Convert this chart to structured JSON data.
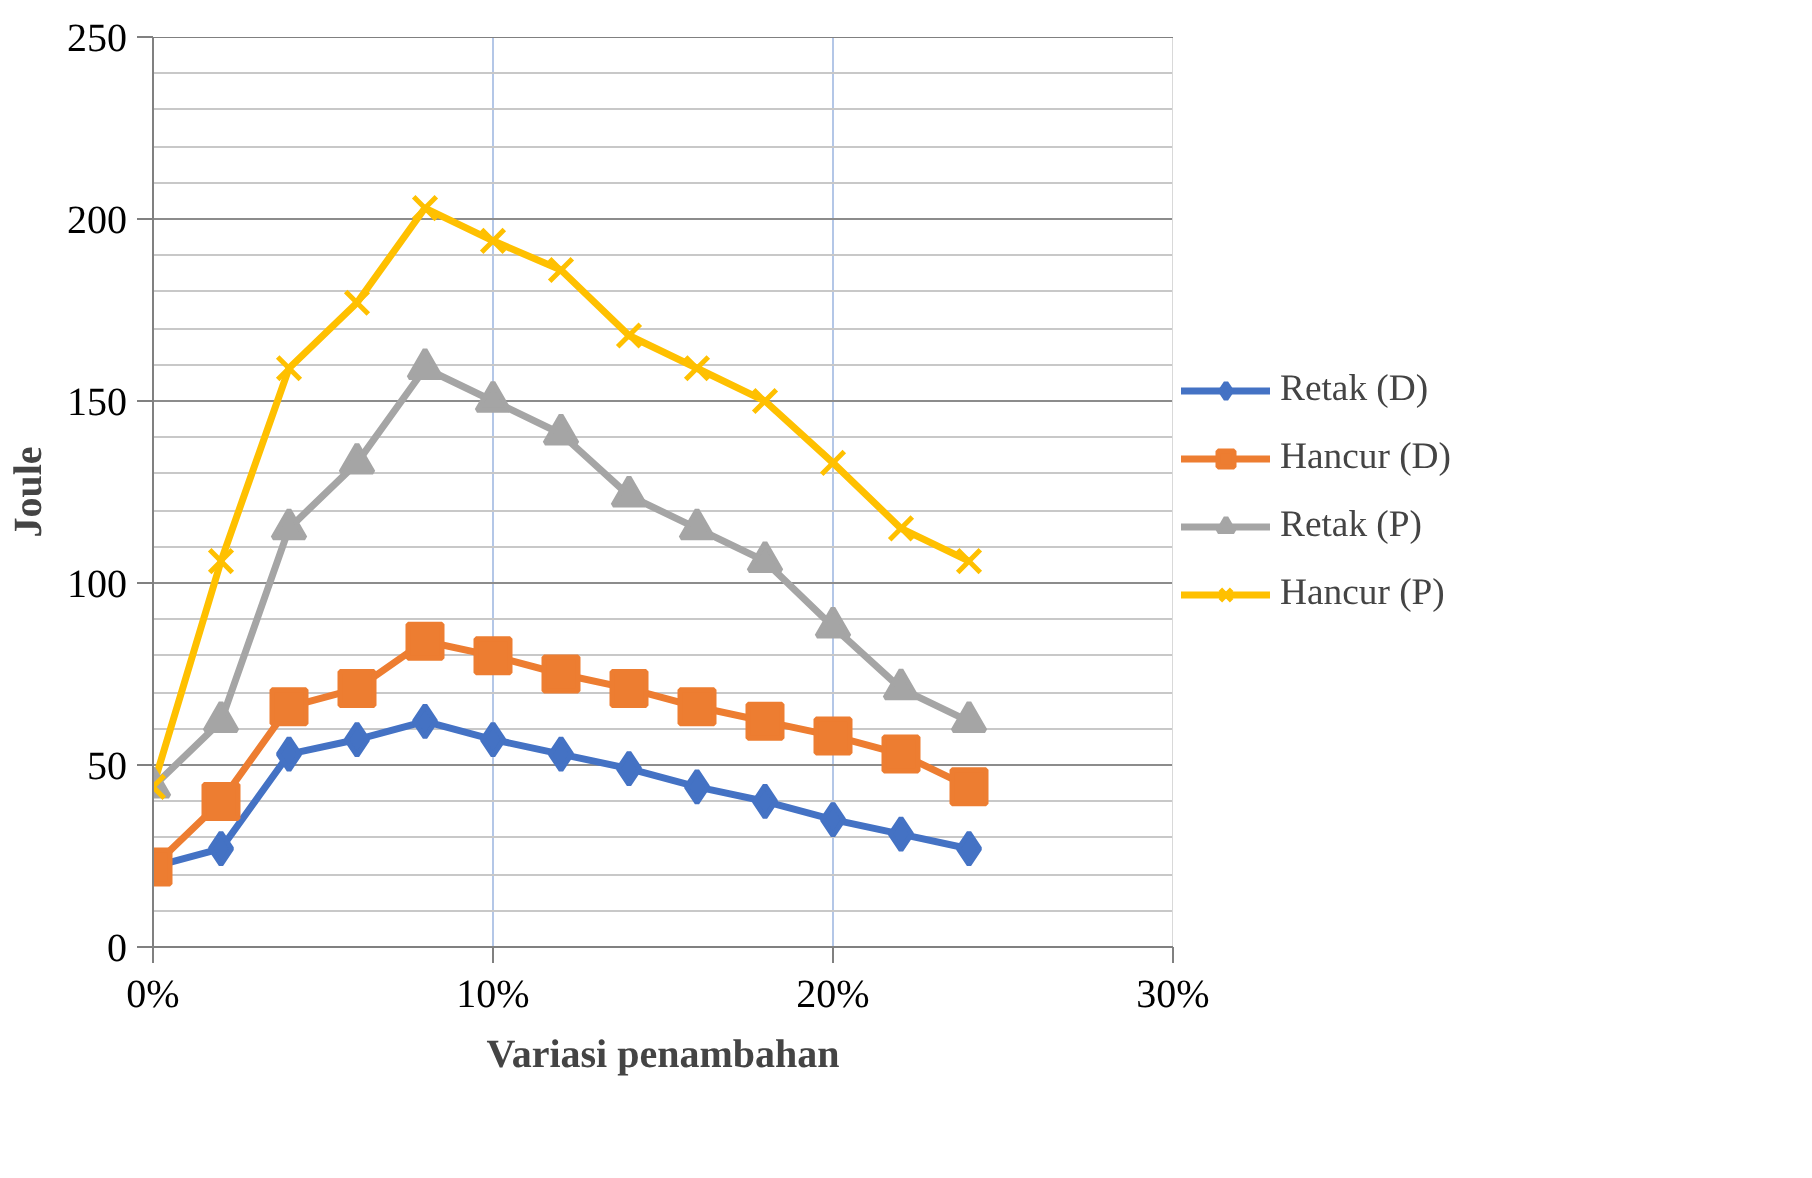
{
  "chart_data": {
    "type": "line",
    "xlabel": "Variasi penambahan",
    "ylabel": "Joule",
    "x": [
      0,
      0.02,
      0.04,
      0.06,
      0.08,
      0.1,
      0.12,
      0.14,
      0.16,
      0.18,
      0.2,
      0.22,
      0.24
    ],
    "xlim": [
      0,
      0.3
    ],
    "xticks": [
      {
        "value": 0,
        "label": "0%"
      },
      {
        "value": 0.1,
        "label": "10%"
      },
      {
        "value": 0.2,
        "label": "20%"
      },
      {
        "value": 0.3,
        "label": "30%"
      }
    ],
    "ylim": [
      0,
      250
    ],
    "yticks": [
      0,
      50,
      100,
      150,
      200,
      250
    ],
    "grid": true,
    "legend": "right",
    "series": [
      {
        "name": "Retak (D)",
        "color": "#4472c4",
        "marker": "diamond",
        "values": [
          22,
          27,
          53,
          57,
          62,
          57,
          53,
          49,
          44,
          40,
          35,
          31,
          27
        ]
      },
      {
        "name": "Hancur (D)",
        "color": "#ed7d31",
        "marker": "square",
        "values": [
          22,
          40,
          66,
          71,
          84,
          80,
          75,
          71,
          66,
          62,
          58,
          53,
          44
        ]
      },
      {
        "name": "Retak (P)",
        "color": "#a5a5a5",
        "marker": "triangle",
        "values": [
          44,
          62,
          115,
          133,
          159,
          150,
          141,
          124,
          115,
          106,
          88,
          71,
          62
        ]
      },
      {
        "name": "Hancur (P)",
        "color": "#ffc000",
        "marker": "x",
        "values": [
          44,
          106,
          159,
          177,
          203,
          194,
          186,
          168,
          159,
          150,
          133,
          115,
          106
        ]
      }
    ]
  }
}
